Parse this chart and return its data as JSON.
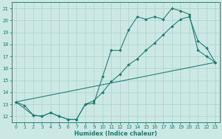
{
  "xlabel": "Humidex (Indice chaleur)",
  "background_color": "#cce8e5",
  "grid_color": "#a8d0cc",
  "line_color": "#1a7a6e",
  "xlim": [
    -0.5,
    23.5
  ],
  "ylim": [
    11.5,
    21.5
  ],
  "xticks": [
    0,
    1,
    2,
    3,
    4,
    5,
    6,
    7,
    8,
    9,
    10,
    11,
    12,
    13,
    14,
    15,
    16,
    17,
    18,
    19,
    20,
    21,
    22,
    23
  ],
  "yticks": [
    12,
    13,
    14,
    15,
    16,
    17,
    18,
    19,
    20,
    21
  ],
  "line1_x": [
    0,
    1,
    2,
    3,
    4,
    5,
    6,
    7,
    8,
    9,
    10,
    11,
    12,
    13,
    14,
    15,
    16,
    17,
    18,
    19,
    20,
    21,
    22,
    23
  ],
  "line1_y": [
    13.2,
    12.9,
    12.1,
    12.0,
    12.3,
    12.0,
    11.75,
    11.75,
    13.0,
    13.1,
    15.3,
    17.5,
    17.5,
    19.2,
    20.3,
    20.1,
    20.3,
    20.1,
    21.0,
    20.8,
    20.5,
    17.5,
    17.0,
    16.5
  ],
  "line2_x": [
    0,
    2,
    3,
    4,
    5,
    6,
    7,
    8,
    9,
    10,
    11,
    12,
    13,
    14,
    15,
    16,
    17,
    18,
    19,
    20,
    21,
    22,
    23
  ],
  "line2_y": [
    13.2,
    12.1,
    12.0,
    12.3,
    12.0,
    11.75,
    11.75,
    13.0,
    13.3,
    14.0,
    14.9,
    15.5,
    16.3,
    16.8,
    17.5,
    18.1,
    18.8,
    19.5,
    20.1,
    20.3,
    18.3,
    17.7,
    16.5
  ],
  "line3_x": [
    0,
    23
  ],
  "line3_y": [
    13.2,
    16.5
  ]
}
